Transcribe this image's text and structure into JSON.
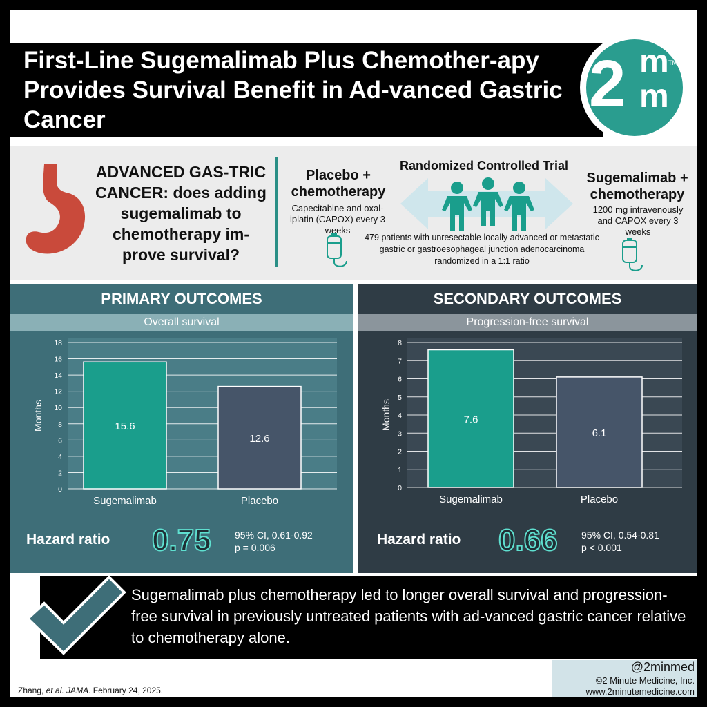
{
  "header": {
    "title": "First-Line Sugemalimab Plus Chemother-apy Provides Survival Benefit in Ad-vanced Gastric Cancer"
  },
  "logo": {
    "two": "2",
    "m1": "m",
    "m2": "m",
    "tm": "TM"
  },
  "trial": {
    "question": "ADVANCED GAS-TRIC CANCER: does adding sugemalimab to chemotherapy im-prove survival?",
    "design": "Randomized Controlled Trial",
    "placebo_arm": {
      "title": "Placebo + chemotherapy",
      "desc": "Capecitabine and oxal-iplatin (CAPOX) every 3 weeks"
    },
    "treatment_arm": {
      "title": "Sugemalimab + chemotherapy",
      "desc": "1200 mg intravenously and CAPOX every 3 weeks"
    },
    "population": "479 patients with unresectable locally advanced or metastatic gastric or gastroesophageal junction adenocarcinoma randomized in a 1:1 ratio"
  },
  "colors": {
    "teal": "#1a9e8c",
    "slate": "#465569",
    "stomach": "#c94a3b",
    "primary_panel": "#3e6e78",
    "secondary_panel": "#2f3c45"
  },
  "primary": {
    "heading": "PRIMARY OUTCOMES",
    "subheading": "Overall survival",
    "hazard_label": "Hazard ratio",
    "hazard_value": "0.75",
    "ci": "95% CI, 0.61-0.92",
    "p": "p = 0.006"
  },
  "secondary": {
    "heading": "SECONDARY OUTCOMES",
    "subheading": "Progression-free survival",
    "hazard_label": "Hazard ratio",
    "hazard_value": "0.66",
    "ci": "95% CI, 0.54-0.81",
    "p": "p < 0.001"
  },
  "chart_data": [
    {
      "type": "bar",
      "title": "Overall survival",
      "ylabel": "Months",
      "categories": [
        "Sugemalimab",
        "Placebo"
      ],
      "values": [
        15.6,
        12.6
      ],
      "value_labels": [
        "15.6",
        "12.6"
      ],
      "ylim": [
        0,
        18
      ],
      "yticks": [
        0,
        2,
        4,
        6,
        8,
        10,
        12,
        14,
        16,
        18
      ],
      "grid": true
    },
    {
      "type": "bar",
      "title": "Progression-free survival",
      "ylabel": "Months",
      "categories": [
        "Sugemalimab",
        "Placebo"
      ],
      "values": [
        7.6,
        6.1
      ],
      "value_labels": [
        "7.6",
        "6.1"
      ],
      "ylim": [
        0,
        8
      ],
      "yticks": [
        0,
        1,
        2,
        3,
        4,
        5,
        6,
        7,
        8
      ],
      "grid": true
    }
  ],
  "conclusion": "Sugemalimab plus chemotherapy led to longer overall survival and progression-free survival in previously untreated patients with ad-vanced gastric cancer relative to chemotherapy alone.",
  "credit": {
    "handle": "@2minmed",
    "org": "©2 Minute Medicine, Inc.",
    "url": "www.2minutemedicine.com"
  },
  "citation": {
    "authors": "Zhang, ",
    "etal": "et al.",
    "journal": "JAMA",
    "date": ". February 24, 2025."
  }
}
